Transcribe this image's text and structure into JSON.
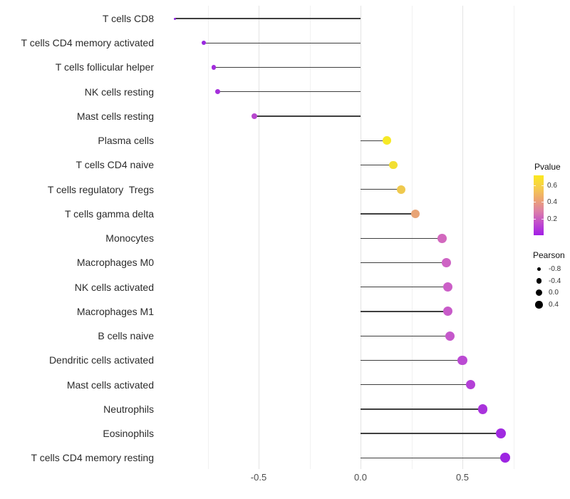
{
  "chart_data": {
    "type": "lollipop",
    "title": "",
    "xlabel": "",
    "ylabel": "",
    "x_tick_labels": [
      "-0.5",
      "0.0",
      "0.5"
    ],
    "x_tick_values": [
      -0.5,
      0.0,
      0.5
    ],
    "x_minor_gridlines": [
      -0.75,
      -0.25,
      0.25,
      0.75
    ],
    "xlim": [
      -0.99,
      0.79
    ],
    "grid": "vertical-only",
    "size_encoding": "Pearson",
    "color_encoding": "Pvalue",
    "points": [
      {
        "label": "T cells CD8",
        "pearson": -0.91,
        "color": "#9124E4"
      },
      {
        "label": "T cells CD4 memory activated",
        "pearson": -0.77,
        "color": "#9A27E0"
      },
      {
        "label": "T cells follicular helper",
        "pearson": -0.72,
        "color": "#A22CDC"
      },
      {
        "label": "NK cells resting",
        "pearson": -0.7,
        "color": "#A530DB"
      },
      {
        "label": "Mast cells resting",
        "pearson": -0.52,
        "color": "#B747CE"
      },
      {
        "label": "Plasma cells",
        "pearson": 0.13,
        "color": "#F6E926"
      },
      {
        "label": "T cells CD4 naive",
        "pearson": 0.16,
        "color": "#F2DF33"
      },
      {
        "label": "T cells regulatory  Tregs",
        "pearson": 0.2,
        "color": "#EFC94E"
      },
      {
        "label": "T cells gamma delta",
        "pearson": 0.27,
        "color": "#E8A476"
      },
      {
        "label": "Monocytes",
        "pearson": 0.4,
        "color": "#D268BE"
      },
      {
        "label": "Macrophages M0",
        "pearson": 0.42,
        "color": "#CE63C4"
      },
      {
        "label": "NK cells activated",
        "pearson": 0.43,
        "color": "#CB5FC7"
      },
      {
        "label": "Macrophages M1",
        "pearson": 0.43,
        "color": "#C85BC9"
      },
      {
        "label": "B cells naive",
        "pearson": 0.44,
        "color": "#C558CB"
      },
      {
        "label": "Dendritic cells activated",
        "pearson": 0.5,
        "color": "#BB4AD3"
      },
      {
        "label": "Mast cells activated",
        "pearson": 0.54,
        "color": "#B440D7"
      },
      {
        "label": "Neutrophils",
        "pearson": 0.6,
        "color": "#A933DC"
      },
      {
        "label": "Eosinophils",
        "pearson": 0.69,
        "color": "#A02AE0"
      },
      {
        "label": "T cells CD4 memory resting",
        "pearson": 0.71,
        "color": "#9D25E2"
      }
    ]
  },
  "legend_pvalue": {
    "title": "Pvalue",
    "tick_labels": [
      "0.6",
      "0.4",
      "0.2"
    ],
    "tick_values": [
      0.6,
      0.4,
      0.2
    ],
    "bar_max_value": 0.715,
    "gradient_top_to_bottom": [
      "#FBE91F",
      "#F6CE4D",
      "#EDA571",
      "#DC7FA8",
      "#C04CCD",
      "#A21EE6"
    ]
  },
  "legend_pearson": {
    "title": "Pearson",
    "entries": [
      {
        "label": "-0.8",
        "value": -0.8
      },
      {
        "label": "-0.4",
        "value": -0.4
      },
      {
        "label": "0.0",
        "value": 0.0
      },
      {
        "label": "0.4",
        "value": 0.4
      }
    ]
  }
}
